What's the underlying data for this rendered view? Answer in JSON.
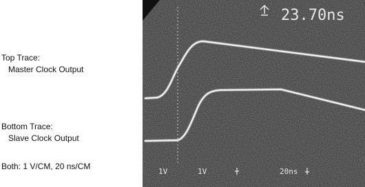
{
  "labels": {
    "top_title": "Top Trace:",
    "top_desc": "Master Clock Output",
    "bottom_title": "Bottom Trace:",
    "bottom_desc": "Slave Clock Output",
    "scale": "Both: 1 V/CM, 20 ns/CM"
  },
  "scope": {
    "delta_readout": "23.70ns",
    "ch1_scale": "1V",
    "ch2_scale": "1V",
    "time_scale": "20ns"
  }
}
